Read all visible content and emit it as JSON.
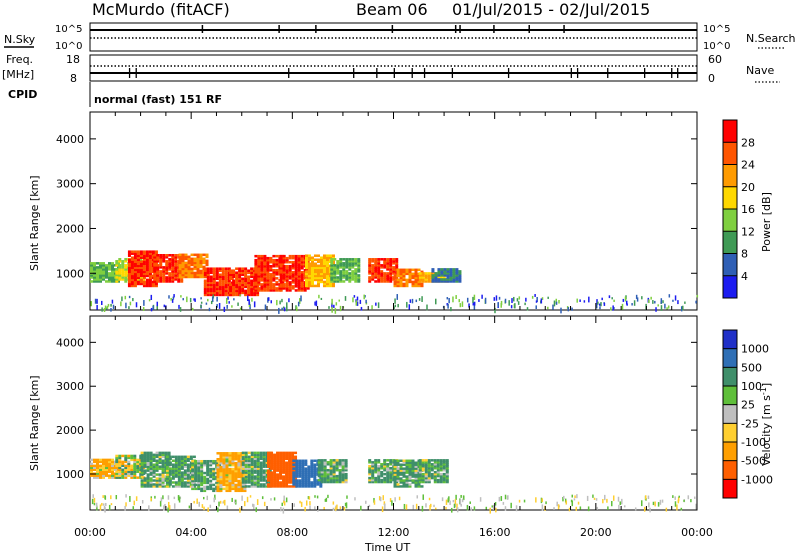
{
  "header": {
    "station": "McMurdo (fitACF)",
    "beam": "Beam 06",
    "date_range": "01/Jul/2015 - 02/Jul/2015"
  },
  "strips": {
    "nsky": {
      "label": "N.Sky",
      "tick_top": "10^5",
      "tick_bottom": "10^0"
    },
    "nsearch": {
      "label": "N.Search",
      "tick_top": "10^5",
      "tick_bottom": "10^0"
    },
    "freq": {
      "label": "Freq.",
      "unit": "[MHz]",
      "tick_top": "18",
      "tick_bottom": "8"
    },
    "nave": {
      "label": "Nave",
      "tick_top": "60",
      "tick_bottom": "0"
    },
    "cpid": {
      "label": "CPID",
      "value": "normal (fast) 151 RF"
    }
  },
  "panels": {
    "ylabel": "Slant Range [km]",
    "yticks": [
      "1000",
      "2000",
      "3000",
      "4000"
    ],
    "xlabel": "Time UT",
    "xticks": [
      "00:00",
      "04:00",
      "08:00",
      "12:00",
      "16:00",
      "20:00",
      "00:00"
    ]
  },
  "colorbars": {
    "power": {
      "label": "Power [dB]",
      "ticks": [
        "4",
        "8",
        "12",
        "16",
        "20",
        "24",
        "28"
      ],
      "colors": [
        "#1c1cf0",
        "#2f5fb5",
        "#3f9a55",
        "#7fcf3f",
        "#ffd800",
        "#ff9b00",
        "#ff5500",
        "#ff0000"
      ]
    },
    "velocity": {
      "label": "Velocity [m s-1]",
      "ticks": [
        "1000",
        "500",
        "100",
        "25",
        "-25",
        "-100",
        "-500",
        "-1000"
      ],
      "colors": [
        "#2030c8",
        "#2f6fb5",
        "#3f8f6a",
        "#5fbf3a",
        "#bfbfbf",
        "#ffcf30",
        "#ff9f00",
        "#ff5f00",
        "#ff0000"
      ]
    }
  },
  "chart_data": [
    {
      "type": "heatmap",
      "title": "Power",
      "xlabel": "Time UT",
      "ylabel": "Slant Range [km]",
      "x_range": [
        "00:00",
        "24:00"
      ],
      "ylim": [
        180,
        4600
      ],
      "colorbar_label": "Power [dB]",
      "colorbar_range": [
        0,
        32
      ],
      "echo_regions": [
        {
          "x": 0.0,
          "y": [
            800,
            1250
          ],
          "value": 12
        },
        {
          "x": 1.0,
          "y": [
            800,
            1300
          ],
          "value": 16
        },
        {
          "x": 1.5,
          "y": [
            700,
            1500
          ],
          "value": 28
        },
        {
          "x": 2.5,
          "y": [
            800,
            1400
          ],
          "value": 28
        },
        {
          "x": 3.5,
          "y": [
            900,
            1400
          ],
          "value": 24
        },
        {
          "x": 4.5,
          "y": [
            500,
            1100
          ],
          "value": 28
        },
        {
          "x": 5.5,
          "y": [
            500,
            1100
          ],
          "value": 28
        },
        {
          "x": 6.5,
          "y": [
            600,
            1400
          ],
          "value": 28
        },
        {
          "x": 7.5,
          "y": [
            600,
            1400
          ],
          "value": 28
        },
        {
          "x": 8.5,
          "y": [
            700,
            1400
          ],
          "value": 20
        },
        {
          "x": 9.5,
          "y": [
            800,
            1300
          ],
          "value": 12
        },
        {
          "x": 11.0,
          "y": [
            800,
            1300
          ],
          "value": 28
        },
        {
          "x": 12.0,
          "y": [
            700,
            1100
          ],
          "value": 24
        },
        {
          "x": 13.0,
          "y": [
            800,
            1000
          ],
          "value": 20
        },
        {
          "x": 13.5,
          "y": [
            800,
            1100
          ],
          "value": 8
        }
      ]
    },
    {
      "type": "heatmap",
      "title": "Velocity",
      "xlabel": "Time UT",
      "ylabel": "Slant Range [km]",
      "x_range": [
        "00:00",
        "24:00"
      ],
      "ylim": [
        180,
        4600
      ],
      "colorbar_label": "Velocity [m s-1]",
      "colorbar_range": [
        -1000,
        1000
      ],
      "echo_regions": [
        {
          "x": 0.0,
          "y": [
            900,
            1350
          ],
          "value": -100
        },
        {
          "x": 1.0,
          "y": [
            900,
            1400
          ],
          "value": 0
        },
        {
          "x": 2.0,
          "y": [
            700,
            1500
          ],
          "value": 100
        },
        {
          "x": 3.0,
          "y": [
            700,
            1400
          ],
          "value": 100
        },
        {
          "x": 4.0,
          "y": [
            600,
            1300
          ],
          "value": 100
        },
        {
          "x": 5.0,
          "y": [
            600,
            1500
          ],
          "value": -100
        },
        {
          "x": 6.0,
          "y": [
            700,
            1500
          ],
          "value": 100
        },
        {
          "x": 7.0,
          "y": [
            700,
            1500
          ],
          "value": -500
        },
        {
          "x": 8.0,
          "y": [
            700,
            1300
          ],
          "value": 500
        },
        {
          "x": 9.0,
          "y": [
            800,
            1300
          ],
          "value": 100
        },
        {
          "x": 11.0,
          "y": [
            800,
            1300
          ],
          "value": 100
        },
        {
          "x": 12.0,
          "y": [
            700,
            1300
          ],
          "value": 100
        },
        {
          "x": 13.0,
          "y": [
            800,
            1300
          ],
          "value": 100
        }
      ]
    }
  ]
}
